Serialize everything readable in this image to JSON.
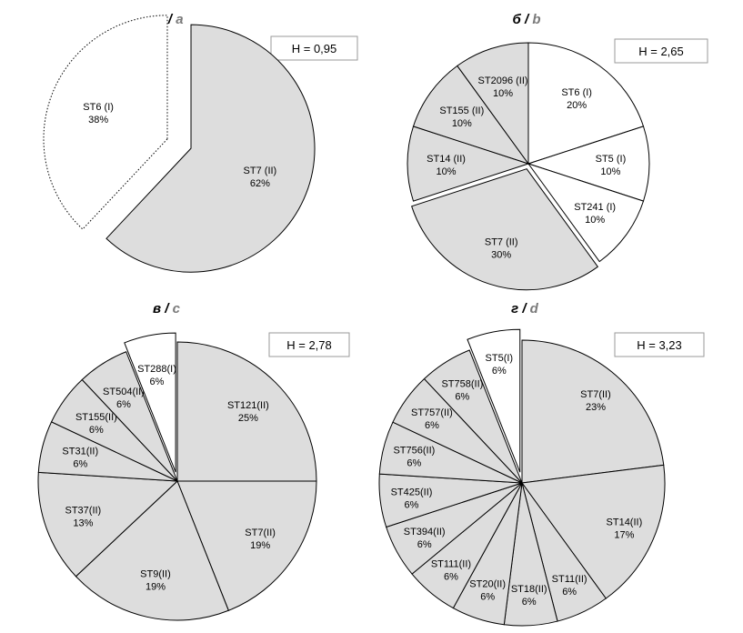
{
  "chart_data": [
    {
      "type": "pie",
      "panel": "a",
      "title_cyr": "а",
      "title_lat": "a",
      "h_label": "H = 0,95",
      "slices": [
        {
          "label": "ST7 (II)",
          "pct_label": "62%",
          "value": 62,
          "fill": "#dddddd",
          "outline": "solid",
          "exploded": true
        },
        {
          "label": "ST6 (I)",
          "pct_label": "38%",
          "value": 38,
          "fill": "#ffffff",
          "outline": "dotted",
          "exploded": true
        }
      ]
    },
    {
      "type": "pie",
      "panel": "b",
      "title_cyr": "б",
      "title_lat": "b",
      "h_label": "H = 2,65",
      "slices": [
        {
          "label": "ST6 (I)",
          "pct_label": "20%",
          "value": 20,
          "fill": "#ffffff",
          "outline": "solid",
          "exploded": false
        },
        {
          "label": "ST5 (I)",
          "pct_label": "10%",
          "value": 10,
          "fill": "#ffffff",
          "outline": "solid",
          "exploded": false
        },
        {
          "label": "ST241 (I)",
          "pct_label": "10%",
          "value": 10,
          "fill": "#ffffff",
          "outline": "solid",
          "exploded": false
        },
        {
          "label": "ST7 (II)",
          "pct_label": "30%",
          "value": 30,
          "fill": "#dddddd",
          "outline": "solid",
          "exploded": true
        },
        {
          "label": "ST14 (II)",
          "pct_label": "10%",
          "value": 10,
          "fill": "#dddddd",
          "outline": "solid",
          "exploded": false
        },
        {
          "label": "ST155 (II)",
          "pct_label": "10%",
          "value": 10,
          "fill": "#dddddd",
          "outline": "solid",
          "exploded": false
        },
        {
          "label": "ST2096 (II)",
          "pct_label": "10%",
          "value": 10,
          "fill": "#dddddd",
          "outline": "solid",
          "exploded": false
        }
      ]
    },
    {
      "type": "pie",
      "panel": "c",
      "title_cyr": "в",
      "title_lat": "c",
      "h_label": "H = 2,78",
      "slices": [
        {
          "label": "ST121(II)",
          "pct_label": "25%",
          "value": 25,
          "fill": "#dddddd",
          "outline": "solid",
          "exploded": false
        },
        {
          "label": "ST7(II)",
          "pct_label": "19%",
          "value": 19,
          "fill": "#dddddd",
          "outline": "solid",
          "exploded": false
        },
        {
          "label": "ST9(II)",
          "pct_label": "19%",
          "value": 19,
          "fill": "#dddddd",
          "outline": "solid",
          "exploded": false
        },
        {
          "label": "ST37(II)",
          "pct_label": "13%",
          "value": 13,
          "fill": "#dddddd",
          "outline": "solid",
          "exploded": false
        },
        {
          "label": "ST31(II)",
          "pct_label": "6%",
          "value": 6,
          "fill": "#dddddd",
          "outline": "solid",
          "exploded": false
        },
        {
          "label": "ST155(II)",
          "pct_label": "6%",
          "value": 6,
          "fill": "#dddddd",
          "outline": "solid",
          "exploded": false
        },
        {
          "label": "ST504(II)",
          "pct_label": "6%",
          "value": 6,
          "fill": "#dddddd",
          "outline": "solid",
          "exploded": false
        },
        {
          "label": "ST288(I)",
          "pct_label": "6%",
          "value": 6,
          "fill": "#ffffff",
          "outline": "solid",
          "exploded": true
        }
      ]
    },
    {
      "type": "pie",
      "panel": "d",
      "title_cyr": "г",
      "title_lat": "d",
      "h_label": "H = 3,23",
      "slices": [
        {
          "label": "ST7(II)",
          "pct_label": "23%",
          "value": 23,
          "fill": "#dddddd",
          "outline": "solid",
          "exploded": false
        },
        {
          "label": "ST14(II)",
          "pct_label": "17%",
          "value": 17,
          "fill": "#dddddd",
          "outline": "solid",
          "exploded": false
        },
        {
          "label": "ST11(II)",
          "pct_label": "6%",
          "value": 6,
          "fill": "#dddddd",
          "outline": "solid",
          "exploded": false
        },
        {
          "label": "ST18(II)",
          "pct_label": "6%",
          "value": 6,
          "fill": "#dddddd",
          "outline": "solid",
          "exploded": false
        },
        {
          "label": "ST20(II)",
          "pct_label": "6%",
          "value": 6,
          "fill": "#dddddd",
          "outline": "solid",
          "exploded": false
        },
        {
          "label": "ST111(II)",
          "pct_label": "6%",
          "value": 6,
          "fill": "#dddddd",
          "outline": "solid",
          "exploded": false
        },
        {
          "label": "ST394(II)",
          "pct_label": "6%",
          "value": 6,
          "fill": "#dddddd",
          "outline": "solid",
          "exploded": false
        },
        {
          "label": "ST425(II)",
          "pct_label": "6%",
          "value": 6,
          "fill": "#dddddd",
          "outline": "solid",
          "exploded": false
        },
        {
          "label": "ST756(II)",
          "pct_label": "6%",
          "value": 6,
          "fill": "#dddddd",
          "outline": "solid",
          "exploded": false
        },
        {
          "label": "ST757(II)",
          "pct_label": "6%",
          "value": 6,
          "fill": "#dddddd",
          "outline": "solid",
          "exploded": false
        },
        {
          "label": "ST758(II)",
          "pct_label": "6%",
          "value": 6,
          "fill": "#dddddd",
          "outline": "solid",
          "exploded": false
        },
        {
          "label": "ST5(I)",
          "pct_label": "6%",
          "value": 6,
          "fill": "#ffffff",
          "outline": "solid",
          "exploded": true
        }
      ]
    }
  ]
}
